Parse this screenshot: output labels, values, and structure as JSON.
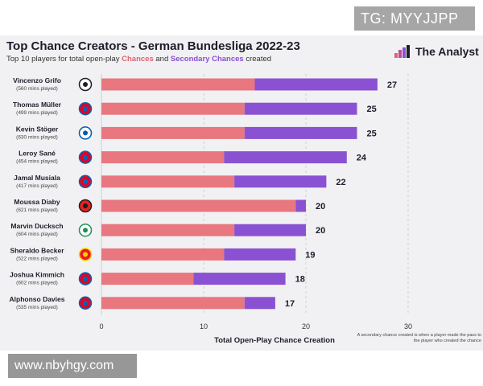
{
  "watermarks": {
    "top": "TG: MYYJJPP",
    "bottom": "www.nbyhgy.com"
  },
  "header": {
    "title": "Top Chance Creators - German Bundesliga 2022-23",
    "subtitle_prefix": "Top 10 players for total open-play ",
    "subtitle_chances": "Chances",
    "subtitle_and": " and ",
    "subtitle_secondary": "Secondary Chances",
    "subtitle_suffix": " created",
    "brand": "The Analyst"
  },
  "footnote": "A secondary chance created is when a player made the pass to the player who created the chance",
  "colors": {
    "chances": "#e8777f",
    "secondary": "#8a52d2",
    "text": "#1d1d2b",
    "background": "#f1f1f3"
  },
  "chart_data": {
    "type": "bar",
    "orientation": "horizontal",
    "stacked": true,
    "title": "Top Chance Creators - German Bundesliga 2022-23",
    "xlabel": "Total Open-Play Chance Creation",
    "ylabel": "",
    "xlim": [
      0,
      30
    ],
    "xticks": [
      0,
      10,
      20,
      30
    ],
    "grid": true,
    "categories": [
      "Vincenzo Grifo",
      "Thomas Müller",
      "Kevin Stöger",
      "Leroy Sané",
      "Jamal Musiala",
      "Moussa Diaby",
      "Marvin Ducksch",
      "Sheraldo Becker",
      "Joshua Kimmich",
      "Alphonso Davies"
    ],
    "minutes": [
      "(560 mins played)",
      "(499 mins played)",
      "(630 mins played)",
      "(454 mins played)",
      "(417 mins played)",
      "(621 mins played)",
      "(604 mins played)",
      "(522 mins played)",
      "(602 mins played)",
      "(535 mins played)"
    ],
    "clubs": [
      "freiburg-crest-icon",
      "bayern-crest-icon",
      "bochum-crest-icon",
      "bayern-crest-icon",
      "bayern-crest-icon",
      "leverkusen-crest-icon",
      "bremen-crest-icon",
      "union-berlin-crest-icon",
      "bayern-crest-icon",
      "bayern-crest-icon"
    ],
    "series": [
      {
        "name": "Chances",
        "values": [
          15,
          14,
          14,
          12,
          13,
          19,
          13,
          12,
          9,
          14
        ]
      },
      {
        "name": "Secondary Chances",
        "values": [
          12,
          11,
          11,
          12,
          9,
          1,
          7,
          7,
          9,
          3
        ]
      }
    ],
    "totals": [
      27,
      25,
      25,
      24,
      22,
      20,
      20,
      19,
      18,
      17
    ]
  }
}
